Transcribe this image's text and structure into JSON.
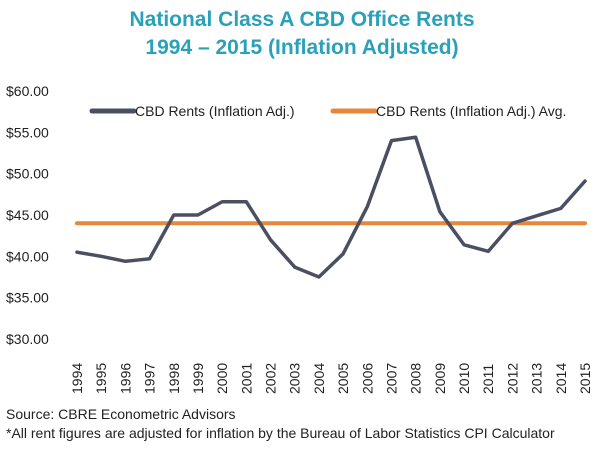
{
  "chart_data": {
    "type": "line",
    "title_line1": "National Class A CBD Office Rents",
    "title_line2": "1994 – 2015 (Inflation Adjusted)",
    "x": [
      "1994",
      "1995",
      "1996",
      "1997",
      "1998",
      "1999",
      "2000",
      "2001",
      "2002",
      "2003",
      "2004",
      "2005",
      "2006",
      "2007",
      "2008",
      "2009",
      "2010",
      "2011",
      "2012",
      "2013",
      "2014",
      "2015"
    ],
    "series": [
      {
        "name": "CBD Rents (Inflation Adj.)",
        "color": "#4a5061",
        "values": [
          40.5,
          40.0,
          39.4,
          39.7,
          45.0,
          45.0,
          46.6,
          46.6,
          42.0,
          38.7,
          37.5,
          40.3,
          46.0,
          54.0,
          54.4,
          45.4,
          41.4,
          40.6,
          44.0,
          44.9,
          45.8,
          49.1
        ]
      },
      {
        "name": "CBD Rents (Inflation Adj.) Avg.",
        "color": "#e8873a",
        "values": [
          44.0,
          44.0,
          44.0,
          44.0,
          44.0,
          44.0,
          44.0,
          44.0,
          44.0,
          44.0,
          44.0,
          44.0,
          44.0,
          44.0,
          44.0,
          44.0,
          44.0,
          44.0,
          44.0,
          44.0,
          44.0,
          44.0
        ]
      }
    ],
    "y_ticks": [
      "$30.00",
      "$35.00",
      "$40.00",
      "$45.00",
      "$50.00",
      "$55.00",
      "$60.00"
    ],
    "y_tick_values": [
      30,
      35,
      40,
      45,
      50,
      55,
      60
    ],
    "ylim": [
      30,
      60
    ],
    "grid": false,
    "legend_position": "top"
  },
  "footer": {
    "source": "Source: CBRE Econometric Advisors",
    "note": "*All rent figures are adjusted for inflation by the Bureau of Labor Statistics CPI Calculator"
  }
}
